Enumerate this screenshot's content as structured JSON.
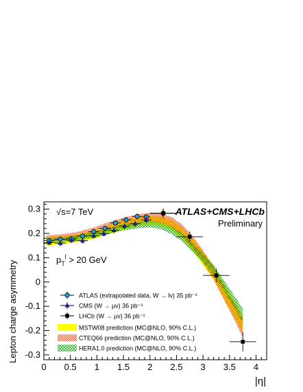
{
  "chart_data": {
    "type": "scatter",
    "title": "ATLAS+CMS+LHCb",
    "subtitle": "Preliminary",
    "energy_label": "√s=7 TeV",
    "cut_label": "p_T^l > 20 GeV",
    "xlabel": "|η|",
    "ylabel": "Lepton charge asymmetry",
    "xlim": [
      0,
      4.2
    ],
    "ylim": [
      -0.32,
      0.33
    ],
    "xticks": [
      {
        "v": 0,
        "label": "0"
      },
      {
        "v": 0.5,
        "label": "0.5"
      },
      {
        "v": 1,
        "label": "1"
      },
      {
        "v": 1.5,
        "label": "1.5"
      },
      {
        "v": 2,
        "label": "2"
      },
      {
        "v": 2.5,
        "label": "2.5"
      },
      {
        "v": 3,
        "label": "3"
      },
      {
        "v": 3.5,
        "label": "3.5"
      },
      {
        "v": 4,
        "label": "4"
      }
    ],
    "yticks": [
      {
        "v": 0.3,
        "label": "0.3"
      },
      {
        "v": 0.2,
        "label": "0.2"
      },
      {
        "v": 0.1,
        "label": "0.1"
      },
      {
        "v": 0,
        "label": "0"
      },
      {
        "v": -0.1,
        "label": "-0.1"
      },
      {
        "v": -0.2,
        "label": "-0.2"
      },
      {
        "v": -0.3,
        "label": "-0.3"
      }
    ],
    "grid": false,
    "legend_position": "bottom-left",
    "bands": [
      {
        "name": "MSTW08 prediction (MC@NLO, 90% C.L.)",
        "color": "#ffff00",
        "pattern": "solid",
        "x": [
          0.05,
          0.3,
          0.6,
          0.9,
          1.2,
          1.5,
          1.8,
          2.0,
          2.2,
          2.4,
          2.6,
          2.8,
          3.0,
          3.2,
          3.4,
          3.6,
          3.75
        ],
        "low": [
          0.15,
          0.155,
          0.163,
          0.175,
          0.195,
          0.215,
          0.232,
          0.237,
          0.232,
          0.215,
          0.18,
          0.13,
          0.07,
          0.01,
          -0.07,
          -0.15,
          -0.21
        ],
        "high": [
          0.185,
          0.188,
          0.195,
          0.21,
          0.232,
          0.255,
          0.268,
          0.272,
          0.27,
          0.255,
          0.225,
          0.18,
          0.125,
          0.065,
          -0.01,
          -0.08,
          -0.14
        ]
      },
      {
        "name": "CTEQ66 prediction (MC@NLO, 90% C.L.)",
        "color": "#ff3300",
        "pattern": "hatch",
        "x": [
          0.05,
          0.3,
          0.6,
          0.9,
          1.2,
          1.5,
          1.8,
          2.0,
          2.2,
          2.4,
          2.6,
          2.8,
          3.0,
          3.2,
          3.4,
          3.6,
          3.75
        ],
        "low": [
          0.165,
          0.17,
          0.178,
          0.19,
          0.21,
          0.228,
          0.243,
          0.248,
          0.245,
          0.228,
          0.192,
          0.14,
          0.078,
          0.01,
          -0.075,
          -0.16,
          -0.23
        ],
        "high": [
          0.192,
          0.196,
          0.205,
          0.222,
          0.245,
          0.265,
          0.28,
          0.285,
          0.282,
          0.268,
          0.238,
          0.19,
          0.13,
          0.065,
          -0.015,
          -0.09,
          -0.15
        ]
      },
      {
        "name": "HERA1.0 prediction (MC@NLO, 90% C.L.)",
        "color": "#22aa22",
        "pattern": "cross",
        "x": [
          0.05,
          0.3,
          0.6,
          0.9,
          1.2,
          1.5,
          1.8,
          2.0,
          2.2,
          2.4,
          2.6,
          2.8,
          3.0,
          3.2,
          3.4,
          3.6,
          3.75
        ],
        "low": [
          0.16,
          0.162,
          0.168,
          0.18,
          0.198,
          0.212,
          0.222,
          0.225,
          0.218,
          0.198,
          0.168,
          0.125,
          0.08,
          0.03,
          -0.04,
          -0.11,
          -0.17
        ],
        "high": [
          0.18,
          0.183,
          0.19,
          0.205,
          0.222,
          0.238,
          0.248,
          0.252,
          0.246,
          0.23,
          0.202,
          0.162,
          0.118,
          0.07,
          0.005,
          -0.06,
          -0.11
        ]
      }
    ],
    "series": [
      {
        "name": "ATLAS (extrapolated data, W → lν) 35 pb⁻¹",
        "marker": "circle",
        "color": "#1f9ec9",
        "x": [
          0.1,
          0.31,
          0.52,
          0.73,
          0.94,
          1.15,
          1.35,
          1.55,
          1.76,
          1.93,
          2.25
        ],
        "y": [
          0.17,
          0.176,
          0.178,
          0.189,
          0.207,
          0.221,
          0.243,
          0.256,
          0.27,
          0.268,
          0.283
        ],
        "xerr": [
          0.1,
          0.11,
          0.1,
          0.11,
          0.1,
          0.11,
          0.1,
          0.1,
          0.1,
          0.07,
          0.25
        ],
        "yerr": [
          0.01,
          0.01,
          0.01,
          0.01,
          0.01,
          0.01,
          0.01,
          0.012,
          0.012,
          0.012,
          0.015
        ]
      },
      {
        "name": "CMS (W → μν) 36 pb⁻¹",
        "marker": "triangle",
        "color": "#1a1a99",
        "x": [
          0.1,
          0.31,
          0.52,
          0.73,
          0.94,
          1.13,
          1.32,
          1.52,
          1.72,
          1.93
        ],
        "y": [
          0.162,
          0.16,
          0.172,
          0.17,
          0.19,
          0.199,
          0.213,
          0.23,
          0.24,
          0.256
        ],
        "xerr": [
          0.1,
          0.1,
          0.1,
          0.1,
          0.1,
          0.1,
          0.1,
          0.1,
          0.1,
          0.1
        ],
        "yerr": [
          0.012,
          0.012,
          0.012,
          0.012,
          0.012,
          0.012,
          0.012,
          0.012,
          0.013,
          0.013
        ]
      },
      {
        "name": "LHCb (W → μν) 36 pb⁻¹",
        "marker": "square",
        "color": "#000000",
        "x": [
          2.25,
          2.75,
          3.25,
          3.75
        ],
        "y": [
          0.283,
          0.186,
          0.027,
          -0.246
        ],
        "xerr": [
          0.25,
          0.25,
          0.25,
          0.25
        ],
        "yerr": [
          0.02,
          0.022,
          0.028,
          0.04
        ]
      }
    ]
  }
}
